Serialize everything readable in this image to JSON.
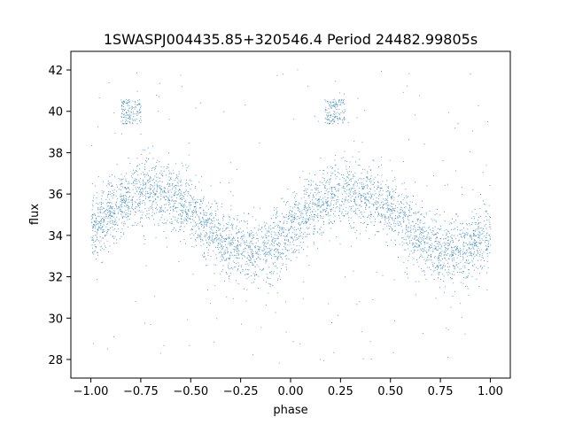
{
  "chart_data": {
    "type": "scatter",
    "title": "1SWASPJ004435.85+320546.4 Period 24482.99805s",
    "xlabel": "phase",
    "ylabel": "flux",
    "xlim": [
      -1.1,
      1.1
    ],
    "ylim": [
      27.1,
      42.9
    ],
    "x_ticks": [
      -1.0,
      -0.75,
      -0.5,
      -0.25,
      0.0,
      0.25,
      0.5,
      0.75,
      1.0
    ],
    "x_tick_labels": [
      "−1.00",
      "−0.75",
      "−0.50",
      "−0.25",
      "0.00",
      "0.25",
      "0.50",
      "0.75",
      "1.00"
    ],
    "y_ticks": [
      28,
      30,
      32,
      34,
      36,
      38,
      40,
      42
    ],
    "y_tick_labels": [
      "28",
      "30",
      "32",
      "34",
      "36",
      "38",
      "40",
      "42"
    ],
    "grid": false,
    "marker_color": "#1f77b4",
    "series": [
      {
        "points_per_half": 9000,
        "x_range": [
          -1.0,
          1.0
        ],
        "phase_min": -0.2,
        "phase_max": 0.3,
        "flux_min": 33.2,
        "flux_max": 36.2,
        "scatter": 0.8,
        "outlier_fraction": 0.04,
        "outlier_range": [
          27.8,
          42.2
        ],
        "upper_cluster": {
          "phase": [
            -0.85,
            -0.75
          ],
          "flux": [
            39.4,
            40.6
          ]
        },
        "upper_cluster_2": {
          "phase": [
            0.17,
            0.27
          ],
          "flux": [
            39.4,
            40.6
          ]
        }
      }
    ]
  }
}
